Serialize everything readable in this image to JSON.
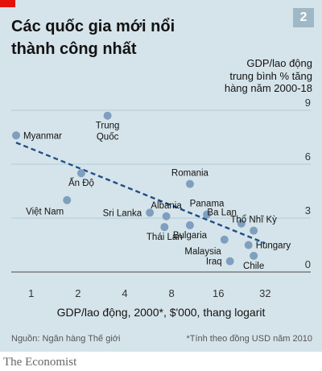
{
  "header": {
    "title_line1": "Các quốc gia mới nổi",
    "title_line2": "thành công nhất",
    "badge": "2"
  },
  "colors": {
    "background": "#d5e4ea",
    "point": "#7f9fbf",
    "trend": "#1f4e85",
    "grid": "#a8bfcc",
    "accent_red": "#e3120b"
  },
  "footer": {
    "source": "Nguồn: Ngân hàng Thế giới",
    "note": "*Tính theo đồng USD năm 2010",
    "brand": "The Economist"
  },
  "chart_data": {
    "type": "scatter",
    "title": "Các quốc gia mới nổi thành công nhất",
    "xlabel": "GDP/lao động, 2000*, $'000, thang logarit",
    "ylabel_lines": [
      "GDP/lao động",
      "trung bình % tăng",
      "hàng năm 2000-18"
    ],
    "x_scale": "log2",
    "xlim": [
      0.8,
      45
    ],
    "ylim": [
      0,
      9
    ],
    "x_ticks": [
      1,
      2,
      4,
      8,
      16,
      32
    ],
    "y_ticks": [
      0,
      3,
      6,
      9
    ],
    "grid": "horizontal",
    "trend_line": {
      "x": [
        0.8,
        32
      ],
      "y": [
        7.2,
        1.6
      ]
    },
    "points": [
      {
        "label": "Myanmar",
        "x": 0.8,
        "y": 7.6,
        "label_pos": "right"
      },
      {
        "label": "Trung Quốc",
        "x": 3.1,
        "y": 8.7,
        "label_pos": "below2",
        "label_lines": [
          "Trung",
          "Quốc"
        ]
      },
      {
        "label": "Ấn Độ",
        "x": 2.1,
        "y": 5.5,
        "label_pos": "below"
      },
      {
        "label": "Việt Nam",
        "x": 1.7,
        "y": 4.0,
        "label_pos": "below-left"
      },
      {
        "label": "Sri Lanka",
        "x": 5.8,
        "y": 3.3,
        "label_pos": "left"
      },
      {
        "label": "Albania",
        "x": 7.4,
        "y": 3.1,
        "label_pos": "above"
      },
      {
        "label": "Thái Lan",
        "x": 7.2,
        "y": 2.5,
        "label_pos": "below"
      },
      {
        "label": "Romania",
        "x": 10.5,
        "y": 4.9,
        "label_pos": "above"
      },
      {
        "label": "Bulgaria",
        "x": 10.5,
        "y": 2.6,
        "label_pos": "below"
      },
      {
        "label": "Panama",
        "x": 13.5,
        "y": 3.2,
        "label_pos": "above"
      },
      {
        "label": "Malaysia",
        "x": 17.5,
        "y": 1.8,
        "label_pos": "below-left"
      },
      {
        "label": "Ba Lan",
        "x": 22.5,
        "y": 2.7,
        "label_pos": "above-left"
      },
      {
        "label": "Thổ Nhĩ Kỳ",
        "x": 27,
        "y": 2.3,
        "label_pos": "above"
      },
      {
        "label": "Hungary",
        "x": 25,
        "y": 1.5,
        "label_pos": "right"
      },
      {
        "label": "Iraq",
        "x": 19,
        "y": 0.6,
        "label_pos": "left"
      },
      {
        "label": "Chile",
        "x": 27,
        "y": 0.9,
        "label_pos": "below"
      }
    ]
  }
}
